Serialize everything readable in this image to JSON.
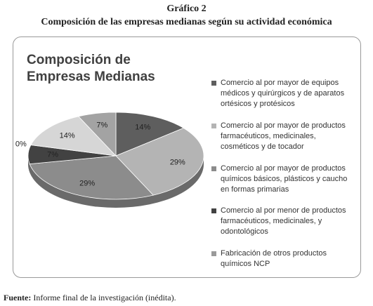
{
  "header": {
    "title": "Gráfico 2",
    "subtitle": "Composición de las empresas medianas según su actividad económica"
  },
  "chart_data": {
    "type": "pie",
    "title": "Composición de Empresas Medianas",
    "categories": [
      "Comercio al por mayor de equipos médicos y quirúrgicos y de aparatos ortésicos y protésicos",
      "Comercio al por mayor de productos farmacéuticos, medicinales, cosméticos y de tocador",
      "Comercio al por mayor de productos químicos básicos, plásticos y caucho en formas primarias",
      "Comercio al por menor de productos farmacéuticos, medicinales, y odontológicos",
      "Fabricación de otros productos químicos NCP",
      null,
      null
    ],
    "values": [
      14,
      29,
      29,
      7,
      0,
      14,
      7
    ],
    "value_labels": [
      "14%",
      "29%",
      "29%",
      "7%",
      "0%",
      "14%",
      "7%"
    ],
    "colors": [
      "#5e5e5e",
      "#b4b4b4",
      "#8c8c8c",
      "#424242",
      "#9a9a9a",
      "#d6d6d6",
      "#a3a3a3"
    ]
  },
  "footer": {
    "label": "Fuente:",
    "text": "Informe final de la investigación (inédita)."
  }
}
